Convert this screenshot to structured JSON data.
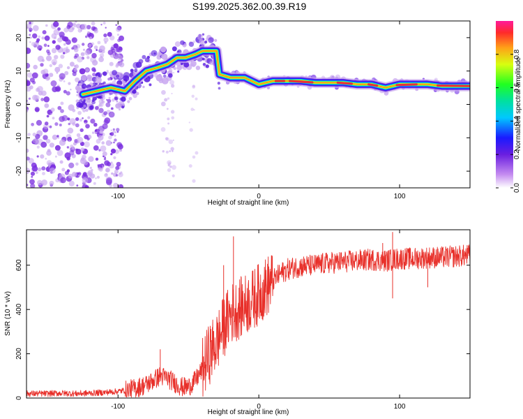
{
  "title": "S199.2025.362.00.39.R19",
  "colors": {
    "snr_line": "#e8302a",
    "ridge_core": "#e8303a",
    "scatter": "#7a2ee0",
    "scatter_light": "#c9a8f0"
  },
  "chart_data": [
    {
      "id": "spectrogram",
      "type": "heatmap",
      "title": "",
      "xlabel": "Height of straight line (km)",
      "ylabel": "Frequency (Hz)",
      "xlim": [
        -165,
        150
      ],
      "ylim": [
        -25,
        25
      ],
      "xticks": [
        -100,
        0,
        100
      ],
      "yticks": [
        -20,
        -10,
        0,
        10,
        20
      ],
      "colorbar": {
        "label": "Normalized spectral amplitude",
        "range": [
          0,
          1
        ],
        "ticks": [
          0.0,
          0.2,
          0.4,
          0.6,
          0.8
        ],
        "tick_labels": [
          "0.0",
          "0.2",
          "0.4",
          "0.6",
          "0.8"
        ]
      },
      "ridge": {
        "x": [
          -125,
          -115,
          -105,
          -95,
          -88,
          -80,
          -72,
          -65,
          -58,
          -52,
          -45,
          -40,
          -35,
          -30,
          -28,
          -20,
          -10,
          0,
          10,
          20,
          30,
          40,
          50,
          60,
          70,
          80,
          90,
          100,
          110,
          120,
          130,
          150
        ],
        "y": [
          3,
          4,
          5,
          4,
          7,
          10,
          11,
          12,
          14,
          14,
          15,
          16,
          16,
          16,
          9,
          8,
          8,
          6,
          7,
          7,
          7,
          6.5,
          6.5,
          6.5,
          6,
          6,
          5,
          6,
          6,
          6,
          5.5,
          5.5
        ]
      }
    },
    {
      "id": "snr",
      "type": "line",
      "title": "",
      "xlabel": "Height of straight line (km)",
      "ylabel": "SNR (10 * v/v)",
      "xlim": [
        -165,
        150
      ],
      "ylim": [
        0,
        760
      ],
      "xticks": [
        -100,
        0,
        100
      ],
      "yticks": [
        0,
        200,
        400,
        600
      ],
      "series": [
        {
          "name": "SNR",
          "x": [
            -165,
            -150,
            -140,
            -130,
            -120,
            -110,
            -100,
            -90,
            -80,
            -75,
            -70,
            -65,
            -60,
            -55,
            -50,
            -45,
            -40,
            -35,
            -30,
            -25,
            -20,
            -15,
            -10,
            -5,
            0,
            5,
            10,
            15,
            20,
            25,
            30,
            40,
            50,
            60,
            70,
            80,
            90,
            100,
            110,
            120,
            130,
            140,
            150
          ],
          "y": [
            20,
            20,
            22,
            20,
            22,
            25,
            30,
            40,
            60,
            80,
            100,
            90,
            70,
            50,
            50,
            80,
            130,
            200,
            250,
            320,
            380,
            400,
            420,
            440,
            470,
            500,
            530,
            560,
            580,
            590,
            595,
            600,
            610,
            615,
            620,
            625,
            620,
            630,
            630,
            635,
            635,
            640,
            645
          ]
        }
      ],
      "peaks": [
        {
          "x": -18,
          "y": 730
        },
        {
          "x": -25,
          "y": 600
        },
        {
          "x": -33,
          "y": 320
        },
        {
          "x": -70,
          "y": 220
        },
        {
          "x": 88,
          "y": 700
        },
        {
          "x": 95,
          "y": 750
        },
        {
          "x": 95,
          "y": 450
        },
        {
          "x": 120,
          "y": 500
        }
      ]
    }
  ]
}
